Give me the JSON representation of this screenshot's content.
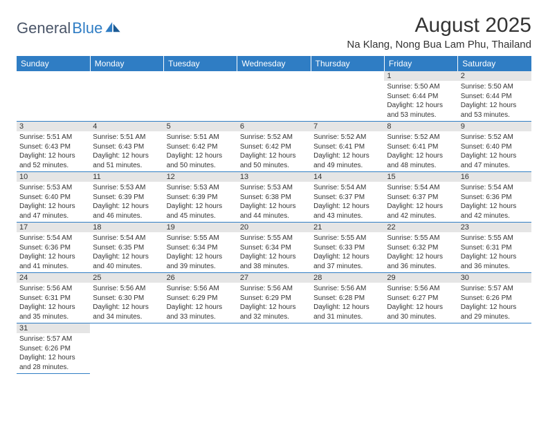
{
  "brand": {
    "name1": "General",
    "name2": "Blue"
  },
  "title": "August 2025",
  "location": "Na Klang, Nong Bua Lam Phu, Thailand",
  "colors": {
    "header_bg": "#2f7dc4",
    "header_text": "#ffffff",
    "daynum_bg": "#e5e5e5",
    "border": "#2f7dc4",
    "text": "#333333",
    "page_bg": "#ffffff"
  },
  "typography": {
    "title_fontsize": 30,
    "location_fontsize": 15,
    "dayheader_fontsize": 12,
    "daynum_fontsize": 11,
    "dayinfo_fontsize": 10
  },
  "weekdays": [
    "Sunday",
    "Monday",
    "Tuesday",
    "Wednesday",
    "Thursday",
    "Friday",
    "Saturday"
  ],
  "first_weekday_index": 5,
  "days": [
    {
      "n": 1,
      "sunrise": "5:50 AM",
      "sunset": "6:44 PM",
      "daylight": "12 hours and 53 minutes."
    },
    {
      "n": 2,
      "sunrise": "5:50 AM",
      "sunset": "6:44 PM",
      "daylight": "12 hours and 53 minutes."
    },
    {
      "n": 3,
      "sunrise": "5:51 AM",
      "sunset": "6:43 PM",
      "daylight": "12 hours and 52 minutes."
    },
    {
      "n": 4,
      "sunrise": "5:51 AM",
      "sunset": "6:43 PM",
      "daylight": "12 hours and 51 minutes."
    },
    {
      "n": 5,
      "sunrise": "5:51 AM",
      "sunset": "6:42 PM",
      "daylight": "12 hours and 50 minutes."
    },
    {
      "n": 6,
      "sunrise": "5:52 AM",
      "sunset": "6:42 PM",
      "daylight": "12 hours and 50 minutes."
    },
    {
      "n": 7,
      "sunrise": "5:52 AM",
      "sunset": "6:41 PM",
      "daylight": "12 hours and 49 minutes."
    },
    {
      "n": 8,
      "sunrise": "5:52 AM",
      "sunset": "6:41 PM",
      "daylight": "12 hours and 48 minutes."
    },
    {
      "n": 9,
      "sunrise": "5:52 AM",
      "sunset": "6:40 PM",
      "daylight": "12 hours and 47 minutes."
    },
    {
      "n": 10,
      "sunrise": "5:53 AM",
      "sunset": "6:40 PM",
      "daylight": "12 hours and 47 minutes."
    },
    {
      "n": 11,
      "sunrise": "5:53 AM",
      "sunset": "6:39 PM",
      "daylight": "12 hours and 46 minutes."
    },
    {
      "n": 12,
      "sunrise": "5:53 AM",
      "sunset": "6:39 PM",
      "daylight": "12 hours and 45 minutes."
    },
    {
      "n": 13,
      "sunrise": "5:53 AM",
      "sunset": "6:38 PM",
      "daylight": "12 hours and 44 minutes."
    },
    {
      "n": 14,
      "sunrise": "5:54 AM",
      "sunset": "6:37 PM",
      "daylight": "12 hours and 43 minutes."
    },
    {
      "n": 15,
      "sunrise": "5:54 AM",
      "sunset": "6:37 PM",
      "daylight": "12 hours and 42 minutes."
    },
    {
      "n": 16,
      "sunrise": "5:54 AM",
      "sunset": "6:36 PM",
      "daylight": "12 hours and 42 minutes."
    },
    {
      "n": 17,
      "sunrise": "5:54 AM",
      "sunset": "6:36 PM",
      "daylight": "12 hours and 41 minutes."
    },
    {
      "n": 18,
      "sunrise": "5:54 AM",
      "sunset": "6:35 PM",
      "daylight": "12 hours and 40 minutes."
    },
    {
      "n": 19,
      "sunrise": "5:55 AM",
      "sunset": "6:34 PM",
      "daylight": "12 hours and 39 minutes."
    },
    {
      "n": 20,
      "sunrise": "5:55 AM",
      "sunset": "6:34 PM",
      "daylight": "12 hours and 38 minutes."
    },
    {
      "n": 21,
      "sunrise": "5:55 AM",
      "sunset": "6:33 PM",
      "daylight": "12 hours and 37 minutes."
    },
    {
      "n": 22,
      "sunrise": "5:55 AM",
      "sunset": "6:32 PM",
      "daylight": "12 hours and 36 minutes."
    },
    {
      "n": 23,
      "sunrise": "5:55 AM",
      "sunset": "6:31 PM",
      "daylight": "12 hours and 36 minutes."
    },
    {
      "n": 24,
      "sunrise": "5:56 AM",
      "sunset": "6:31 PM",
      "daylight": "12 hours and 35 minutes."
    },
    {
      "n": 25,
      "sunrise": "5:56 AM",
      "sunset": "6:30 PM",
      "daylight": "12 hours and 34 minutes."
    },
    {
      "n": 26,
      "sunrise": "5:56 AM",
      "sunset": "6:29 PM",
      "daylight": "12 hours and 33 minutes."
    },
    {
      "n": 27,
      "sunrise": "5:56 AM",
      "sunset": "6:29 PM",
      "daylight": "12 hours and 32 minutes."
    },
    {
      "n": 28,
      "sunrise": "5:56 AM",
      "sunset": "6:28 PM",
      "daylight": "12 hours and 31 minutes."
    },
    {
      "n": 29,
      "sunrise": "5:56 AM",
      "sunset": "6:27 PM",
      "daylight": "12 hours and 30 minutes."
    },
    {
      "n": 30,
      "sunrise": "5:57 AM",
      "sunset": "6:26 PM",
      "daylight": "12 hours and 29 minutes."
    },
    {
      "n": 31,
      "sunrise": "5:57 AM",
      "sunset": "6:26 PM",
      "daylight": "12 hours and 28 minutes."
    }
  ],
  "labels": {
    "sunrise": "Sunrise:",
    "sunset": "Sunset:",
    "daylight": "Daylight:"
  }
}
